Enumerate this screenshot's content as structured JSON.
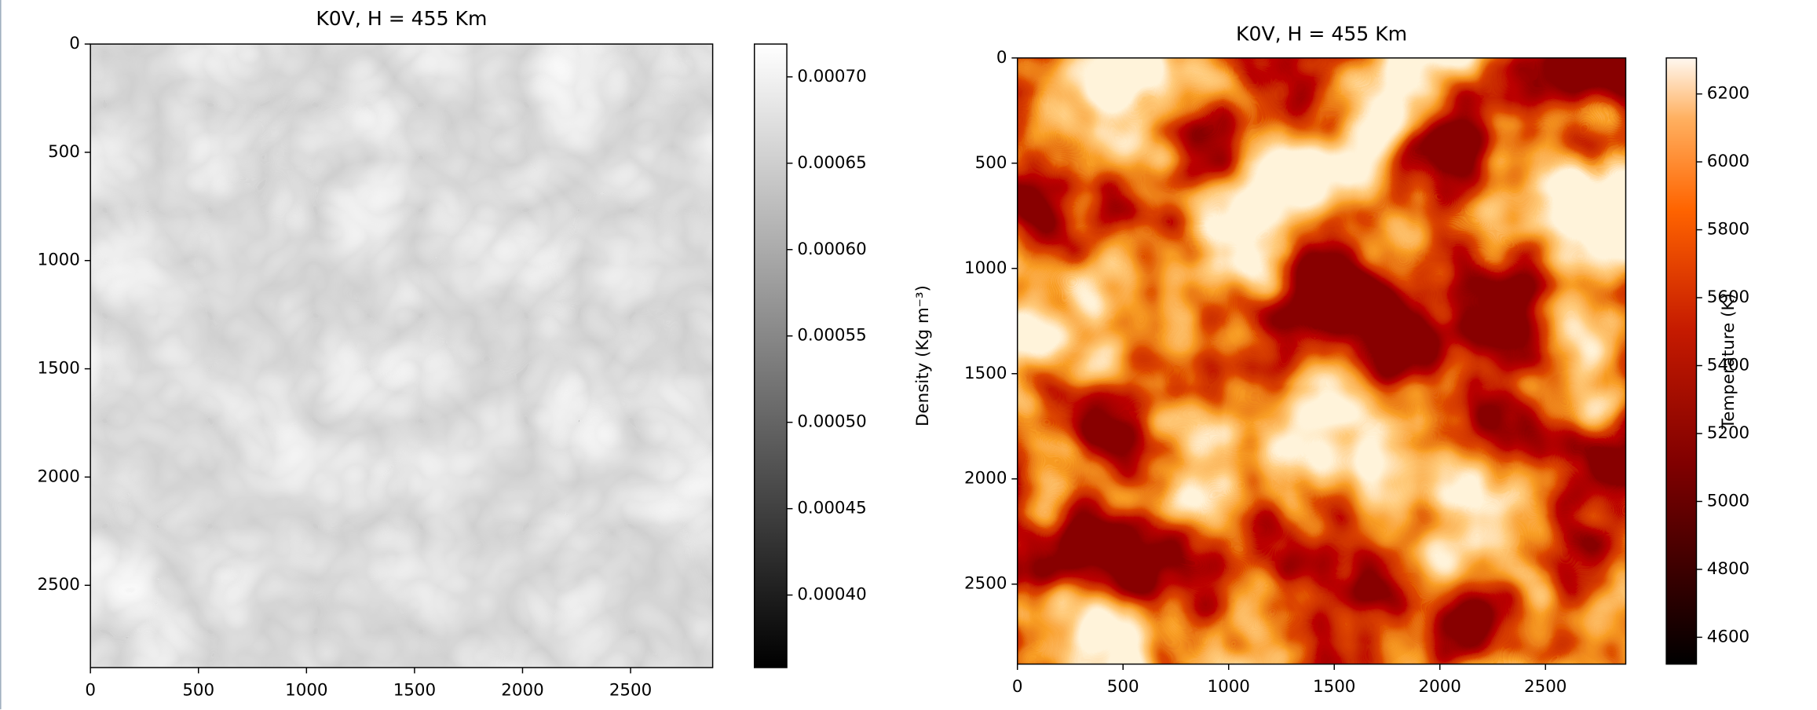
{
  "chart_data": [
    {
      "type": "heatmap",
      "title": "K0V, H = 455 Km",
      "colormap": "gray",
      "xlim": [
        0,
        2880
      ],
      "ylim": [
        2880,
        0
      ],
      "xticks": [
        0,
        500,
        1000,
        1500,
        2000,
        2500
      ],
      "yticks": [
        0,
        500,
        1000,
        1500,
        2000,
        2500
      ],
      "colorbar": {
        "label": "Density (Kg m⁻³)",
        "lim": [
          0.000358,
          0.000719
        ],
        "ticks": [
          {
            "value": 0.0004,
            "label": "0.00040"
          },
          0.00045,
          {
            "value": 0.0005,
            "label": "0.00050"
          },
          0.00055,
          {
            "value": 0.0006,
            "label": "0.00060"
          },
          0.00065,
          {
            "value": 0.0007,
            "label": "0.00070"
          }
        ]
      }
    },
    {
      "type": "heatmap",
      "title": "K0V, H = 455 Km",
      "colormap": "gist_heat",
      "xlim": [
        0,
        2880
      ],
      "ylim": [
        2880,
        0
      ],
      "xticks": [
        0,
        500,
        1000,
        1500,
        2000,
        2500
      ],
      "yticks": [
        0,
        500,
        1000,
        1500,
        2000,
        2500
      ],
      "colorbar": {
        "label": "Temperature (K)",
        "lim": [
          4521,
          6306
        ],
        "ticks": [
          4600,
          4800,
          5000,
          5200,
          5400,
          5600,
          5800,
          6000,
          6200
        ]
      }
    }
  ]
}
